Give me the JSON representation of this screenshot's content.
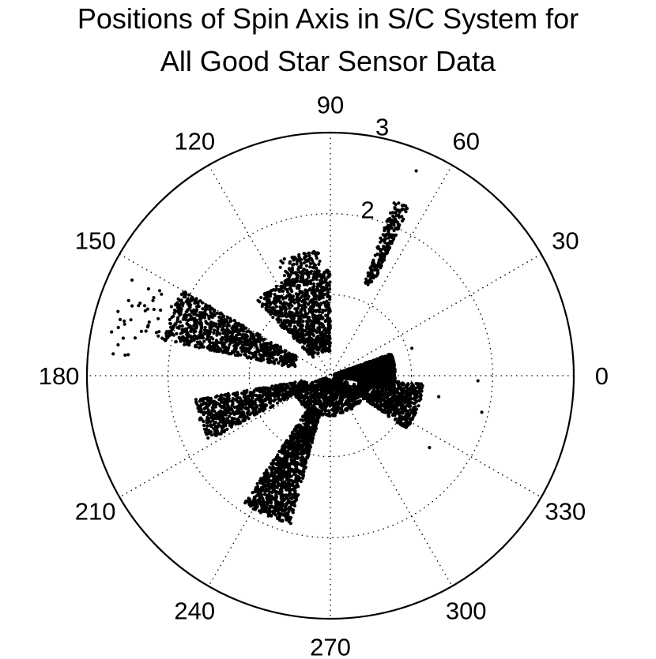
{
  "chart_data": {
    "type": "scatter",
    "coordinate_system": "polar",
    "title_lines": [
      "Positions of Spin Axis in S/C System for",
      "All Good Star Sensor Data"
    ],
    "angle_unit": "degrees",
    "angle_ticks": [
      "0",
      "30",
      "60",
      "90",
      "120",
      "150",
      "180",
      "210",
      "240",
      "270",
      "300",
      "330"
    ],
    "radial_ticks": [
      "2",
      "3"
    ],
    "rlim": [
      0,
      3
    ],
    "radial_grid": [
      1,
      2
    ],
    "grid": true,
    "grid_style": "dotted",
    "marker_color": "#000000",
    "series": [
      {
        "clusters": [
          {
            "theta": [
              -10,
              20
            ],
            "r": [
              0.05,
              0.8
            ],
            "n": 2200
          },
          {
            "theta": [
              90,
              135
            ],
            "r": [
              0.3,
              1.3
            ],
            "n": 900
          },
          {
            "theta": [
              95,
              115
            ],
            "r": [
              1.2,
              1.55
            ],
            "n": 120
          },
          {
            "theta": [
              65,
              70
            ],
            "r": [
              1.2,
              2.3
            ],
            "n": 210
          },
          {
            "theta": [
              150,
              168
            ],
            "r": [
              0.45,
              2.1
            ],
            "n": 900
          },
          {
            "theta": [
              190,
              208
            ],
            "r": [
              0.3,
              1.7
            ],
            "n": 700
          },
          {
            "theta": [
              236,
              255
            ],
            "r": [
              0.45,
              1.9
            ],
            "n": 1100
          },
          {
            "theta": [
              -35,
              -5
            ],
            "r": [
              0.35,
              1.15
            ],
            "n": 700
          },
          {
            "theta": [
              200,
              340
            ],
            "r": [
              0.05,
              0.5
            ],
            "n": 800
          },
          {
            "theta": [
              150,
              175
            ],
            "r": [
              2.0,
              2.75
            ],
            "n": 40
          }
        ],
        "points": [
          {
            "theta": 67.3,
            "r": 2.74
          },
          {
            "theta": 18.6,
            "r": 1.06
          },
          {
            "theta": 167.2,
            "r": 2.68
          },
          {
            "theta": 165.0,
            "r": 2.33
          },
          {
            "theta": -13.6,
            "r": 1.92
          },
          {
            "theta": -2.0,
            "r": 1.82
          },
          {
            "theta": -11.0,
            "r": 1.36
          },
          {
            "theta": -36.0,
            "r": 1.51
          }
        ]
      }
    ]
  }
}
